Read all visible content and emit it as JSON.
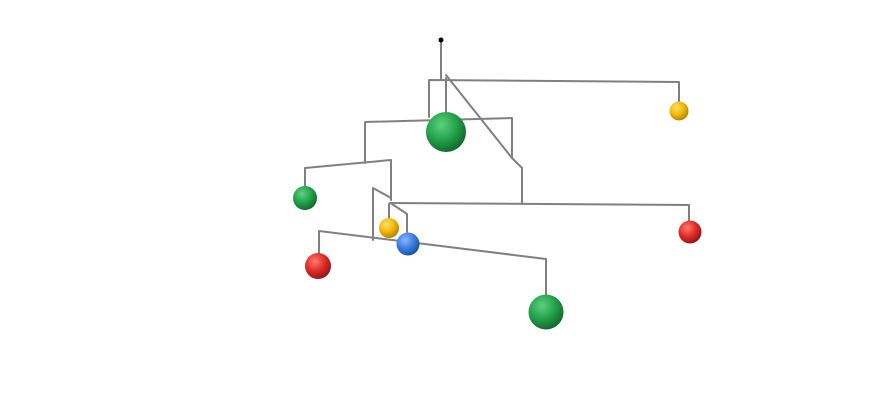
{
  "colors": {
    "background": "#ffffff",
    "wire": "#808080",
    "pivot": "#000000",
    "green": "#22a24a",
    "yellow": "#f2b705",
    "red": "#e02a28",
    "blue": "#3b7de2"
  },
  "mobile": {
    "balls": [
      {
        "name": "ball-green-large-top",
        "color": "green"
      },
      {
        "name": "ball-yellow-right",
        "color": "yellow"
      },
      {
        "name": "ball-green-left",
        "color": "green"
      },
      {
        "name": "ball-yellow-center",
        "color": "yellow"
      },
      {
        "name": "ball-blue-center",
        "color": "blue"
      },
      {
        "name": "ball-red-right",
        "color": "red"
      },
      {
        "name": "ball-red-left",
        "color": "red"
      },
      {
        "name": "ball-green-large-bottom",
        "color": "green"
      }
    ]
  }
}
